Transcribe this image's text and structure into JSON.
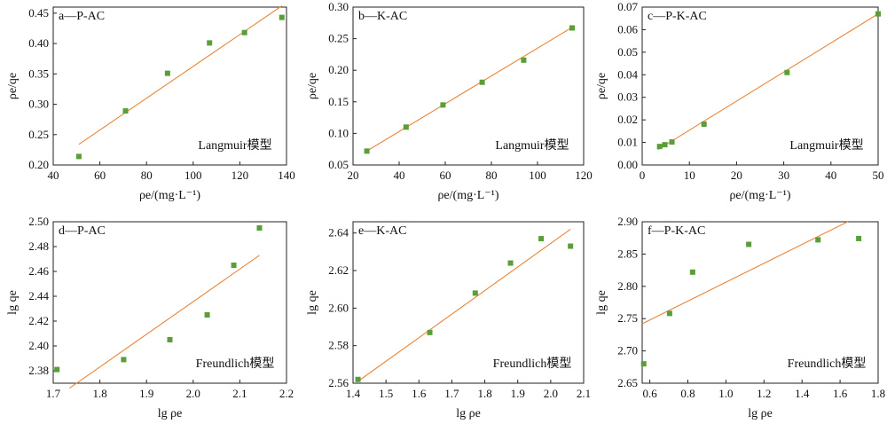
{
  "colors": {
    "marker": "#5a9e3a",
    "fit_line": "#e8863a",
    "axis": "#222222"
  },
  "chart_data": [
    {
      "type": "scatter",
      "panel_label": "a—P-AC",
      "annotation": "Langmuir模型",
      "xlabel": "ρe/(mg·L⁻¹)",
      "ylabel": "ρe/qe",
      "xlim": [
        40,
        140
      ],
      "ylim": [
        0.2,
        0.46
      ],
      "xticks": [
        40,
        60,
        80,
        100,
        120,
        140
      ],
      "yticks": [
        0.2,
        0.25,
        0.3,
        0.35,
        0.4,
        0.45
      ],
      "xtick_labels": [
        "40",
        "60",
        "80",
        "100",
        "120",
        "140"
      ],
      "ytick_labels": [
        "0.20",
        "0.25",
        "0.30",
        "0.35",
        "0.40",
        "0.45"
      ],
      "x": [
        51,
        71,
        89,
        107,
        122,
        138
      ],
      "y": [
        0.214,
        0.289,
        0.351,
        0.401,
        0.418,
        0.443
      ],
      "fit": [
        [
          51,
          0.234
        ],
        [
          138,
          0.462
        ]
      ]
    },
    {
      "type": "scatter",
      "panel_label": "b—K-AC",
      "annotation": "Langmuir模型",
      "xlabel": "ρe/(mg·L⁻¹)",
      "ylabel": "ρe/qe",
      "xlim": [
        20,
        120
      ],
      "ylim": [
        0.05,
        0.3
      ],
      "xticks": [
        20,
        40,
        60,
        80,
        100,
        120
      ],
      "yticks": [
        0.05,
        0.1,
        0.15,
        0.2,
        0.25,
        0.3
      ],
      "xtick_labels": [
        "20",
        "40",
        "60",
        "80",
        "100",
        "120"
      ],
      "ytick_labels": [
        "0.05",
        "0.10",
        "0.15",
        "0.20",
        "0.25",
        "0.30"
      ],
      "x": [
        26,
        43,
        59,
        76,
        94,
        115
      ],
      "y": [
        0.072,
        0.11,
        0.145,
        0.181,
        0.216,
        0.267
      ],
      "fit": [
        [
          25,
          0.07
        ],
        [
          115,
          0.268
        ]
      ]
    },
    {
      "type": "scatter",
      "panel_label": "c—P-K-AC",
      "annotation": "Langmuir模型",
      "xlabel": "ρe/(mg·L⁻¹)",
      "ylabel": "ρe/qe",
      "xlim": [
        0,
        50
      ],
      "ylim": [
        0,
        0.07
      ],
      "xticks": [
        0,
        10,
        20,
        30,
        40,
        50
      ],
      "yticks": [
        0.0,
        0.01,
        0.02,
        0.03,
        0.04,
        0.05,
        0.06,
        0.07
      ],
      "xtick_labels": [
        "0",
        "10",
        "20",
        "30",
        "40",
        "50"
      ],
      "ytick_labels": [
        "0.00",
        "0.01",
        "0.02",
        "0.03",
        "0.04",
        "0.05",
        "0.06",
        "0.07"
      ],
      "x": [
        3.7,
        4.8,
        6.3,
        13.1,
        30.7,
        50
      ],
      "y": [
        0.0082,
        0.009,
        0.0102,
        0.0181,
        0.041,
        0.067
      ],
      "fit": [
        [
          3.3,
          0.0068
        ],
        [
          50,
          0.067
        ]
      ]
    },
    {
      "type": "scatter",
      "panel_label": "d—P-AC",
      "annotation": "Freundlich模型",
      "xlabel": "lg ρe",
      "ylabel": "lg qe",
      "xlim": [
        1.7,
        2.2
      ],
      "ylim": [
        2.37,
        2.5
      ],
      "xticks": [
        1.7,
        1.8,
        1.9,
        2.0,
        2.1,
        2.2
      ],
      "yticks": [
        2.38,
        2.4,
        2.42,
        2.44,
        2.46,
        2.48,
        2.5
      ],
      "xtick_labels": [
        "1.7",
        "1.8",
        "1.9",
        "2.0",
        "2.1",
        "2.2"
      ],
      "ytick_labels": [
        "2.38",
        "2.40",
        "2.42",
        "2.44",
        "2.46",
        "2.48",
        "2.50"
      ],
      "x": [
        1.708,
        1.851,
        1.95,
        2.03,
        2.087,
        2.142
      ],
      "y": [
        2.381,
        2.389,
        2.405,
        2.425,
        2.465,
        2.495
      ],
      "fit": [
        [
          1.735,
          2.366
        ],
        [
          2.142,
          2.473
        ]
      ]
    },
    {
      "type": "scatter",
      "panel_label": "e—K-AC",
      "annotation": "Freundlich模型",
      "xlabel": "lg ρe",
      "ylabel": "lg qe",
      "xlim": [
        1.4,
        2.1
      ],
      "ylim": [
        2.56,
        2.646
      ],
      "xticks": [
        1.4,
        1.5,
        1.6,
        1.7,
        1.8,
        1.9,
        2.0,
        2.1
      ],
      "yticks": [
        2.56,
        2.58,
        2.6,
        2.62,
        2.64
      ],
      "xtick_labels": [
        "1.4",
        "1.5",
        "1.6",
        "1.7",
        "1.8",
        "1.9",
        "2.0",
        "2.1"
      ],
      "ytick_labels": [
        "2.56",
        "2.58",
        "2.60",
        "2.62",
        "2.64"
      ],
      "x": [
        1.415,
        1.633,
        1.771,
        1.878,
        1.971,
        2.06
      ],
      "y": [
        2.562,
        2.587,
        2.608,
        2.624,
        2.637,
        2.633
      ],
      "fit": [
        [
          1.415,
          2.561
        ],
        [
          2.06,
          2.642
        ]
      ]
    },
    {
      "type": "scatter",
      "panel_label": "f—P-K-AC",
      "annotation": "Freundlich模型",
      "xlabel": "lg ρe",
      "ylabel": "lg qe",
      "xlim": [
        0.56,
        1.8
      ],
      "ylim": [
        2.65,
        2.9
      ],
      "xticks": [
        0.6,
        0.8,
        1.0,
        1.2,
        1.4,
        1.6,
        1.8
      ],
      "yticks": [
        2.65,
        2.7,
        2.75,
        2.8,
        2.85,
        2.9
      ],
      "xtick_labels": [
        "0.6",
        "0.8",
        "1.0",
        "1.2",
        "1.4",
        "1.6",
        "1.8"
      ],
      "ytick_labels": [
        "2.65",
        "2.70",
        "2.75",
        "2.80",
        "2.85",
        "2.90"
      ],
      "x": [
        0.568,
        0.704,
        0.825,
        1.12,
        1.484,
        1.698
      ],
      "y": [
        2.68,
        2.758,
        2.822,
        2.865,
        2.872,
        2.874
      ],
      "fit": [
        [
          0.56,
          2.742
        ],
        [
          1.64,
          2.9
        ]
      ]
    }
  ]
}
